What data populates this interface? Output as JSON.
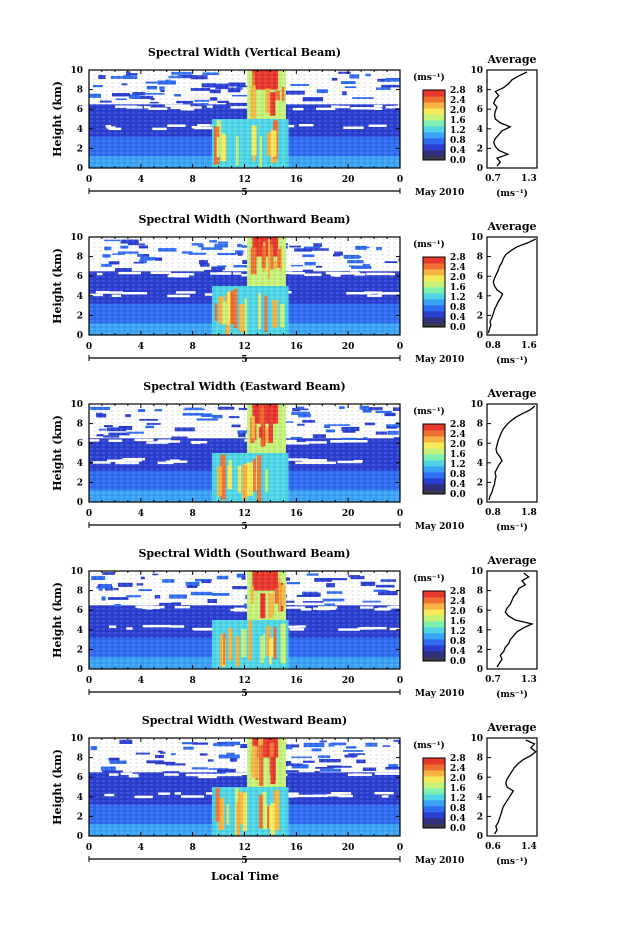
{
  "figure": {
    "date_label": "May 2010",
    "xlabel": "Local Time",
    "ylabel": "Height (km)",
    "unit_label": "(ms⁻¹)",
    "average_title": "Average",
    "average_xlabel": "(ms⁻¹)",
    "day_label": "5",
    "x_ticks": [
      "0",
      "4",
      "8",
      "12",
      "16",
      "20",
      "0"
    ],
    "y_ticks": [
      "0",
      "2",
      "4",
      "6",
      "8",
      "10"
    ],
    "colorbar_ticks": [
      "0.0",
      "0.4",
      "0.8",
      "1.2",
      "1.6",
      "2.0",
      "2.4",
      "2.8"
    ],
    "colormap": [
      "#30307f",
      "#2b3fd0",
      "#2f6cf2",
      "#3aa3f6",
      "#4fd6e6",
      "#7ff0b0",
      "#c6f27a",
      "#f6e95a",
      "#f7b442",
      "#ef6f33",
      "#e8372c"
    ]
  },
  "chart_data": [
    {
      "type": "heatmap",
      "title": "Spectral Width (Vertical Beam)",
      "xlim": [
        0,
        24
      ],
      "ylim": [
        0,
        10
      ],
      "colorbar_range": [
        0.0,
        2.8
      ],
      "average": {
        "x_ticks": [
          "0.7",
          "1.3"
        ],
        "xlim": [
          0.7,
          1.3
        ],
        "profile": [
          [
            0.2,
            0.82
          ],
          [
            0.6,
            0.86
          ],
          [
            1.0,
            0.82
          ],
          [
            1.4,
            0.95
          ],
          [
            1.8,
            0.84
          ],
          [
            2.2,
            0.8
          ],
          [
            2.6,
            0.78
          ],
          [
            3.0,
            0.8
          ],
          [
            3.4,
            0.84
          ],
          [
            3.8,
            0.88
          ],
          [
            4.2,
            0.98
          ],
          [
            4.6,
            0.86
          ],
          [
            5.0,
            0.8
          ],
          [
            5.4,
            0.79
          ],
          [
            5.8,
            0.8
          ],
          [
            6.2,
            0.82
          ],
          [
            6.6,
            0.78
          ],
          [
            7.0,
            0.8
          ],
          [
            7.4,
            0.84
          ],
          [
            7.8,
            0.8
          ],
          [
            8.2,
            0.9
          ],
          [
            8.6,
            0.96
          ],
          [
            9.0,
            1.0
          ],
          [
            9.4,
            1.08
          ],
          [
            9.8,
            1.18
          ]
        ]
      }
    },
    {
      "type": "heatmap",
      "title": "Spectral Width (Northward Beam)",
      "xlim": [
        0,
        24
      ],
      "ylim": [
        0,
        10
      ],
      "colorbar_range": [
        0.0,
        2.8
      ],
      "average": {
        "x_ticks": [
          "0.8",
          "1.6"
        ],
        "xlim": [
          0.8,
          1.6
        ],
        "profile": [
          [
            0.2,
            0.82
          ],
          [
            0.6,
            0.84
          ],
          [
            1.0,
            0.86
          ],
          [
            1.4,
            0.85
          ],
          [
            1.8,
            0.88
          ],
          [
            2.2,
            0.9
          ],
          [
            2.6,
            0.92
          ],
          [
            3.0,
            0.95
          ],
          [
            3.4,
            0.98
          ],
          [
            3.8,
            1.02
          ],
          [
            4.2,
            1.05
          ],
          [
            4.6,
            0.96
          ],
          [
            5.0,
            0.92
          ],
          [
            5.4,
            0.9
          ],
          [
            5.8,
            0.92
          ],
          [
            6.2,
            0.95
          ],
          [
            6.6,
            0.98
          ],
          [
            7.0,
            1.0
          ],
          [
            7.4,
            1.04
          ],
          [
            7.8,
            1.06
          ],
          [
            8.2,
            1.1
          ],
          [
            8.6,
            1.18
          ],
          [
            9.0,
            1.28
          ],
          [
            9.4,
            1.45
          ],
          [
            9.8,
            1.58
          ]
        ]
      }
    },
    {
      "type": "heatmap",
      "title": "Spectral Width (Eastward Beam)",
      "xlim": [
        0,
        24
      ],
      "ylim": [
        0,
        10
      ],
      "colorbar_range": [
        0.0,
        2.8
      ],
      "average": {
        "x_ticks": [
          "0.8",
          "1.8"
        ],
        "xlim": [
          0.8,
          1.8
        ],
        "profile": [
          [
            0.2,
            0.84
          ],
          [
            0.6,
            0.86
          ],
          [
            1.0,
            0.9
          ],
          [
            1.4,
            0.92
          ],
          [
            1.8,
            0.95
          ],
          [
            2.2,
            0.96
          ],
          [
            2.6,
            0.98
          ],
          [
            3.0,
            0.96
          ],
          [
            3.4,
            1.0
          ],
          [
            3.8,
            1.04
          ],
          [
            4.2,
            1.1
          ],
          [
            4.6,
            1.06
          ],
          [
            5.0,
            1.0
          ],
          [
            5.4,
            0.98
          ],
          [
            5.8,
            1.0
          ],
          [
            6.2,
            1.02
          ],
          [
            6.6,
            1.05
          ],
          [
            7.0,
            1.08
          ],
          [
            7.4,
            1.12
          ],
          [
            7.8,
            1.18
          ],
          [
            8.2,
            1.26
          ],
          [
            8.6,
            1.36
          ],
          [
            9.0,
            1.5
          ],
          [
            9.4,
            1.66
          ],
          [
            9.8,
            1.76
          ]
        ]
      }
    },
    {
      "type": "heatmap",
      "title": "Spectral Width (Southward Beam)",
      "xlim": [
        0,
        24
      ],
      "ylim": [
        0,
        10
      ],
      "colorbar_range": [
        0.0,
        2.8
      ],
      "average": {
        "x_ticks": [
          "0.7",
          "1.3"
        ],
        "xlim": [
          0.7,
          1.3
        ],
        "profile": [
          [
            0.2,
            0.82
          ],
          [
            0.6,
            0.85
          ],
          [
            1.0,
            0.88
          ],
          [
            1.4,
            0.86
          ],
          [
            1.8,
            0.9
          ],
          [
            2.2,
            0.92
          ],
          [
            2.6,
            0.96
          ],
          [
            3.0,
            0.98
          ],
          [
            3.4,
            1.02
          ],
          [
            3.8,
            1.06
          ],
          [
            4.2,
            1.14
          ],
          [
            4.6,
            1.24
          ],
          [
            5.0,
            1.04
          ],
          [
            5.4,
            0.96
          ],
          [
            5.8,
            0.92
          ],
          [
            6.2,
            0.94
          ],
          [
            6.6,
            0.98
          ],
          [
            7.0,
            1.0
          ],
          [
            7.4,
            1.02
          ],
          [
            7.8,
            1.06
          ],
          [
            8.2,
            1.08
          ],
          [
            8.6,
            1.16
          ],
          [
            9.0,
            1.12
          ],
          [
            9.4,
            1.2
          ],
          [
            9.8,
            1.14
          ]
        ]
      }
    },
    {
      "type": "heatmap",
      "title": "Spectral Width (Westward Beam)",
      "xlim": [
        0,
        24
      ],
      "ylim": [
        0,
        10
      ],
      "colorbar_range": [
        0.0,
        2.8
      ],
      "average": {
        "x_ticks": [
          "0.6",
          "1.4"
        ],
        "xlim": [
          0.6,
          1.4
        ],
        "profile": [
          [
            0.2,
            0.72
          ],
          [
            0.6,
            0.76
          ],
          [
            1.0,
            0.74
          ],
          [
            1.4,
            0.78
          ],
          [
            1.8,
            0.8
          ],
          [
            2.2,
            0.82
          ],
          [
            2.6,
            0.84
          ],
          [
            3.0,
            0.86
          ],
          [
            3.4,
            0.9
          ],
          [
            3.8,
            0.94
          ],
          [
            4.2,
            0.98
          ],
          [
            4.6,
            1.02
          ],
          [
            5.0,
            0.92
          ],
          [
            5.4,
            0.9
          ],
          [
            5.8,
            0.92
          ],
          [
            6.2,
            0.96
          ],
          [
            6.6,
            1.0
          ],
          [
            7.0,
            1.04
          ],
          [
            7.4,
            1.1
          ],
          [
            7.8,
            1.18
          ],
          [
            8.2,
            1.3
          ],
          [
            8.6,
            1.38
          ],
          [
            9.0,
            1.3
          ],
          [
            9.4,
            1.36
          ],
          [
            9.8,
            1.22
          ]
        ]
      }
    }
  ]
}
